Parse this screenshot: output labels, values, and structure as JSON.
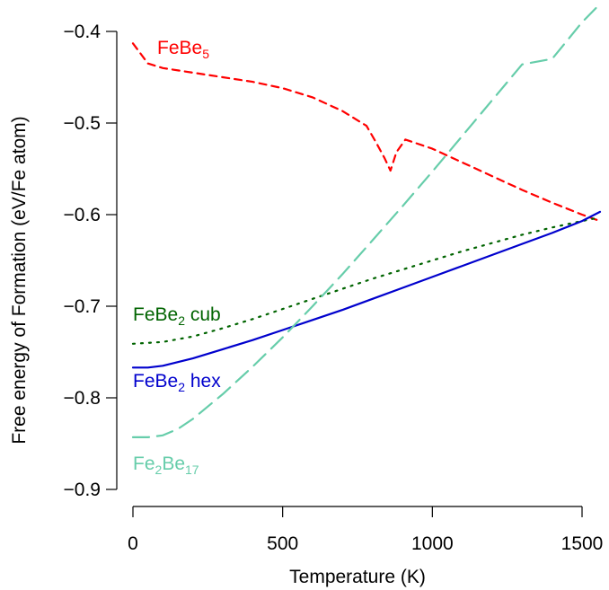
{
  "chart_data": {
    "type": "line",
    "xlabel": "Temperature (K)",
    "ylabel": "Free energy of Formation (eV/Fe atom)",
    "xlim": [
      0,
      1560
    ],
    "ylim": [
      -0.9,
      -0.4
    ],
    "x_ticks": [
      0,
      500,
      1000,
      1500
    ],
    "x_tick_labels": [
      "0",
      "500",
      "1000",
      "1500"
    ],
    "y_ticks": [
      -0.4,
      -0.5,
      -0.6,
      -0.7,
      -0.8,
      -0.9
    ],
    "y_tick_labels": [
      "−0.4",
      "−0.5",
      "−0.6",
      "−0.7",
      "−0.8",
      "−0.9"
    ],
    "series": [
      {
        "name": "FeBe5",
        "label_main": "FeBe",
        "label_sub": "5",
        "label_tail": "",
        "color": "#ff0000",
        "style": "dashed",
        "x": [
          0,
          50,
          100,
          200,
          300,
          400,
          500,
          600,
          700,
          780,
          810,
          840,
          860,
          880,
          910,
          1000,
          1100,
          1200,
          1300,
          1400,
          1500,
          1560
        ],
        "y": [
          -0.413,
          -0.435,
          -0.44,
          -0.445,
          -0.45,
          -0.455,
          -0.462,
          -0.472,
          -0.487,
          -0.503,
          -0.52,
          -0.538,
          -0.552,
          -0.532,
          -0.518,
          -0.528,
          -0.543,
          -0.558,
          -0.573,
          -0.587,
          -0.6,
          -0.607
        ]
      },
      {
        "name": "FeBe2 cub",
        "label_main": "FeBe",
        "label_sub": "2",
        "label_tail": " cub",
        "color": "#006400",
        "style": "dotted",
        "x": [
          0,
          100,
          200,
          300,
          400,
          500,
          600,
          700,
          800,
          900,
          1000,
          1100,
          1200,
          1300,
          1400,
          1500,
          1560
        ],
        "y": [
          -0.741,
          -0.739,
          -0.733,
          -0.724,
          -0.714,
          -0.703,
          -0.692,
          -0.681,
          -0.67,
          -0.66,
          -0.65,
          -0.64,
          -0.631,
          -0.622,
          -0.614,
          -0.607,
          -0.603
        ]
      },
      {
        "name": "FeBe2 hex",
        "label_main": "FeBe",
        "label_sub": "2",
        "label_tail": " hex",
        "color": "#0000cd",
        "style": "solid",
        "x": [
          0,
          50,
          100,
          200,
          300,
          400,
          500,
          600,
          700,
          800,
          900,
          1000,
          1100,
          1200,
          1300,
          1400,
          1500,
          1560
        ],
        "y": [
          -0.767,
          -0.767,
          -0.765,
          -0.757,
          -0.747,
          -0.737,
          -0.726,
          -0.715,
          -0.704,
          -0.692,
          -0.68,
          -0.668,
          -0.656,
          -0.644,
          -0.632,
          -0.62,
          -0.607,
          -0.597
        ]
      },
      {
        "name": "Fe2Be17",
        "label_main": "Fe",
        "label_sub": "2",
        "label_tail": "Be",
        "label_sub2": "17",
        "color": "#66cdaa",
        "style": "longdash",
        "x": [
          0,
          50,
          100,
          150,
          200,
          300,
          400,
          500,
          600,
          700,
          800,
          900,
          1000,
          1100,
          1200,
          1300,
          1400,
          1500,
          1560
        ],
        "y": [
          -0.843,
          -0.843,
          -0.841,
          -0.834,
          -0.823,
          -0.796,
          -0.766,
          -0.734,
          -0.7,
          -0.665,
          -0.628,
          -0.591,
          -0.553,
          -0.514,
          -0.475,
          -0.436,
          -0.43,
          -0.39,
          -0.37
        ]
      }
    ]
  }
}
